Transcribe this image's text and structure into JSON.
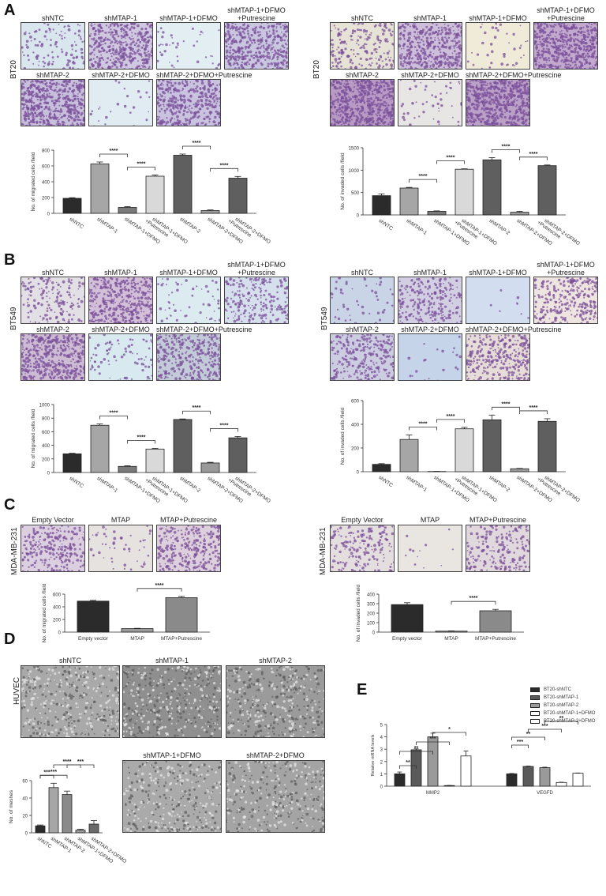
{
  "panels": {
    "A": {
      "letter": "A",
      "cell_line": "BT20"
    },
    "B": {
      "letter": "B",
      "cell_line": "BT549"
    },
    "C": {
      "letter": "C",
      "cell_line": "MDA-MB-231"
    },
    "D": {
      "letter": "D",
      "cell_line": "HUVEC"
    },
    "E": {
      "letter": "E"
    }
  },
  "grid_labels": {
    "seven": [
      "shNTC",
      "shMTAP-1",
      "shMTAP-1+DFMO",
      "shMTAP-1+DFMO\n+Putrescine",
      "shMTAP-2",
      "shMTAP-2+DFMO",
      "shMTAP-2+DFMO+Putrescine"
    ],
    "three": [
      "Empty Vector",
      "MTAP",
      "MTAP+Putrescine"
    ],
    "huvec": [
      "shNTC",
      "shMTAP-1",
      "shMTAP-2",
      "shMTAP-1+DFMO",
      "shMTAP-2+DFMO"
    ]
  },
  "image_tints": {
    "A_left": [
      "#d9e6ee",
      "#cfc8e0",
      "#e3eef3",
      "#c9c6e0",
      "#c8bfdc",
      "#e0ecf2",
      "#c9c3df"
    ],
    "A_right": [
      "#e6e2d6",
      "#cdbfda",
      "#f0ead8",
      "#c2a9cd",
      "#b99ac4",
      "#e8e6e4",
      "#bba0c8"
    ],
    "B_left": [
      "#e2e0e4",
      "#d3c0d8",
      "#dcebf0",
      "#d6e0ec",
      "#cdbcd4",
      "#d8eaf0",
      "#c3cbd9"
    ],
    "B_right": [
      "#c9d4e6",
      "#d2cfe2",
      "#d2def0",
      "#eee4e0",
      "#cdcde2",
      "#c6d4ea",
      "#e6dcd8"
    ],
    "C_left": [
      "#dcd0e0",
      "#e6e2e0",
      "#ddd0dc"
    ],
    "C_right": [
      "#e4dedf",
      "#e9e6e2",
      "#e0d8dc"
    ],
    "D": [
      "#a9a9a9",
      "#8f8f8f",
      "#9b9b9b",
      "#aaaaaa",
      "#a4a4a4"
    ],
    "stain": "#7a4f9a"
  },
  "chart_data": [
    {
      "id": "A_migration",
      "type": "bar",
      "title": "",
      "ylabel": "No. of migrated cells /field",
      "categories": [
        "shNTC",
        "shMTAP-1",
        "shMTAP-1+DFMO",
        "shMTAP-1+DFMO +Putrescine",
        "shMTAP-2",
        "shMTAP-2+DFMO",
        "shMTAP-2+DFMO +Putrescine"
      ],
      "values": [
        190,
        625,
        75,
        470,
        735,
        35,
        445
      ],
      "errors": [
        8,
        25,
        10,
        15,
        15,
        8,
        22
      ],
      "colors": [
        "#2b2b2b",
        "#a6a6a6",
        "#7a7a7a",
        "#d9d9d9",
        "#5f5f5f",
        "#9a9a9a",
        "#5f5f5f"
      ],
      "ylim": [
        0,
        800
      ],
      "yticks": [
        0,
        200,
        400,
        600,
        800
      ],
      "significance": [
        {
          "from": 1,
          "to": 2,
          "label": "****"
        },
        {
          "from": 2,
          "to": 3,
          "label": "****"
        },
        {
          "from": 4,
          "to": 5,
          "label": "****"
        },
        {
          "from": 5,
          "to": 6,
          "label": "****"
        }
      ]
    },
    {
      "id": "A_invasion",
      "type": "bar",
      "ylabel": "No. of invaded cells /field",
      "categories": [
        "shNTC",
        "shMTAP-1",
        "shMTAP-1+DFMO",
        "shMTAP-1+DFMO +Putrescine",
        "shMTAP-2",
        "shMTAP-2+DFMO",
        "shMTAP-2+DFMO +Putrescine"
      ],
      "values": [
        430,
        600,
        80,
        1020,
        1230,
        60,
        1100
      ],
      "errors": [
        40,
        15,
        10,
        10,
        50,
        20,
        15
      ],
      "colors": [
        "#2b2b2b",
        "#a6a6a6",
        "#7a7a7a",
        "#d9d9d9",
        "#5f5f5f",
        "#9a9a9a",
        "#5f5f5f"
      ],
      "ylim": [
        0,
        1500
      ],
      "yticks": [
        0,
        500,
        1000,
        1500
      ],
      "significance": [
        {
          "from": 1,
          "to": 2,
          "label": "****"
        },
        {
          "from": 2,
          "to": 3,
          "label": "****"
        },
        {
          "from": 4,
          "to": 5,
          "label": "****"
        },
        {
          "from": 5,
          "to": 6,
          "label": "****"
        }
      ]
    },
    {
      "id": "B_migration",
      "type": "bar",
      "ylabel": "No. of migrated cells /field",
      "categories": [
        "shNTC",
        "shMTAP-1",
        "shMTAP-1+DFMO",
        "shMTAP-1+DFMO +Putrescine",
        "shMTAP-2",
        "shMTAP-2+DFMO",
        "shMTAP-2+DFMO +Putrescine"
      ],
      "values": [
        275,
        695,
        90,
        345,
        780,
        140,
        510
      ],
      "errors": [
        8,
        20,
        10,
        10,
        8,
        10,
        20
      ],
      "colors": [
        "#2b2b2b",
        "#a6a6a6",
        "#7a7a7a",
        "#d9d9d9",
        "#5f5f5f",
        "#9a9a9a",
        "#5f5f5f"
      ],
      "ylim": [
        0,
        1000
      ],
      "yticks": [
        0,
        200,
        400,
        600,
        800,
        1000
      ],
      "significance": [
        {
          "from": 1,
          "to": 2,
          "label": "****"
        },
        {
          "from": 2,
          "to": 3,
          "label": "****"
        },
        {
          "from": 4,
          "to": 5,
          "label": "****"
        },
        {
          "from": 5,
          "to": 6,
          "label": "****"
        }
      ]
    },
    {
      "id": "B_invasion",
      "type": "bar",
      "ylabel": "No. of invaded cells /field",
      "categories": [
        "shNTC",
        "shMTAP-1",
        "shMTAP-1+DFMO",
        "shMTAP-1+DFMO +Putrescine",
        "shMTAP-2",
        "shMTAP-2+DFMO",
        "shMTAP-2+DFMO +Putrescine"
      ],
      "values": [
        62,
        272,
        2,
        362,
        438,
        25,
        425
      ],
      "errors": [
        6,
        38,
        1,
        12,
        40,
        3,
        22
      ],
      "colors": [
        "#2b2b2b",
        "#a6a6a6",
        "#7a7a7a",
        "#d9d9d9",
        "#5f5f5f",
        "#9a9a9a",
        "#5f5f5f"
      ],
      "ylim": [
        0,
        600
      ],
      "yticks": [
        0,
        200,
        400,
        600
      ],
      "significance": [
        {
          "from": 1,
          "to": 2,
          "label": "****"
        },
        {
          "from": 2,
          "to": 3,
          "label": "****"
        },
        {
          "from": 4,
          "to": 5,
          "label": "****"
        },
        {
          "from": 5,
          "to": 6,
          "label": "****"
        }
      ]
    },
    {
      "id": "C_migration",
      "type": "bar",
      "ylabel": "No. of migrated cells /field",
      "categories": [
        "Empty vector",
        "MTAP",
        "MTAP+Putrescine"
      ],
      "values": [
        490,
        55,
        545
      ],
      "errors": [
        12,
        5,
        20
      ],
      "colors": [
        "#2b2b2b",
        "#9a9a9a",
        "#8a8a8a"
      ],
      "ylim": [
        0,
        600
      ],
      "yticks": [
        0,
        200,
        400,
        600
      ],
      "significance": [
        {
          "from": 1,
          "to": 2,
          "label": "****"
        }
      ]
    },
    {
      "id": "C_invasion",
      "type": "bar",
      "ylabel": "No. of invaded cells /field",
      "categories": [
        "Empty vector",
        "MTAP",
        "MTAP+Putrescine"
      ],
      "values": [
        290,
        10,
        225
      ],
      "errors": [
        20,
        3,
        15
      ],
      "colors": [
        "#2b2b2b",
        "#9a9a9a",
        "#8a8a8a"
      ],
      "ylim": [
        0,
        400
      ],
      "yticks": [
        0,
        100,
        200,
        300,
        400
      ],
      "significance": [
        {
          "from": 1,
          "to": 2,
          "label": "****"
        }
      ]
    },
    {
      "id": "D_meshes",
      "type": "bar",
      "ylabel": "No. of meshes",
      "categories": [
        "shNTC",
        "shMTAP-1",
        "shMTAP-2",
        "shMTAP-1+DFMO",
        "shMTAP-2+DFMO"
      ],
      "values": [
        8,
        52,
        44,
        3,
        10
      ],
      "errors": [
        1,
        5,
        4,
        1,
        4
      ],
      "colors": [
        "#2b2b2b",
        "#a6a6a6",
        "#8a8a8a",
        "#9a9a9a",
        "#6a6a6a"
      ],
      "ylim": [
        0,
        60
      ],
      "yticks": [
        0,
        20,
        40,
        60
      ],
      "significance": [
        {
          "from": 0,
          "to": 1,
          "label": "***"
        },
        {
          "from": 0,
          "to": 2,
          "label": "***"
        },
        {
          "from": 1,
          "to": 3,
          "label": "****"
        },
        {
          "from": 2,
          "to": 4,
          "label": "***"
        }
      ]
    },
    {
      "id": "E_mrna",
      "type": "bar",
      "ylabel": "Relative mRNA levels",
      "categories": [
        "MMP2",
        "VEGFD"
      ],
      "series": [
        {
          "name": "BT20-shNTC",
          "values": [
            1.0,
            1.0
          ],
          "errors": [
            0.15,
            0.03
          ],
          "color": "#2b2b2b"
        },
        {
          "name": "BT20-shMTAP-1",
          "values": [
            2.95,
            1.6
          ],
          "errors": [
            0.08,
            0.03
          ],
          "color": "#5a5a5a"
        },
        {
          "name": "BT20-shMTAP-2",
          "values": [
            4.0,
            1.5
          ],
          "errors": [
            0.3,
            0.04
          ],
          "color": "#9a9a9a"
        },
        {
          "name": "BT20-shMTAP-1+DFMO",
          "values": [
            0.05,
            0.3
          ],
          "errors": [
            0.01,
            0.02
          ],
          "color": "#ffffff"
        },
        {
          "name": "BT20-shMTAP-2+DFMO",
          "values": [
            2.45,
            1.05
          ],
          "errors": [
            0.4,
            0.02
          ],
          "color": "#ffffff"
        }
      ],
      "ylim": [
        0,
        5
      ],
      "yticks": [
        0,
        1,
        2,
        3,
        4,
        5
      ],
      "legend_position": "top-right",
      "significance": [
        {
          "group": "MMP2",
          "from": 0,
          "to": 1,
          "label": "**"
        },
        {
          "group": "MMP2",
          "from": 0,
          "to": 2,
          "label": "**"
        },
        {
          "group": "MMP2",
          "from": 1,
          "to": 3,
          "label": "***"
        },
        {
          "group": "MMP2",
          "from": 2,
          "to": 4,
          "label": "*"
        },
        {
          "group": "VEGFD",
          "from": 0,
          "to": 1,
          "label": "***"
        },
        {
          "group": "VEGFD",
          "from": 0,
          "to": 2,
          "label": "**"
        },
        {
          "group": "VEGFD",
          "from": 1,
          "to": 3,
          "label": "***"
        },
        {
          "group": "VEGFD",
          "from": 2,
          "to": 4,
          "label": "**"
        }
      ]
    }
  ]
}
